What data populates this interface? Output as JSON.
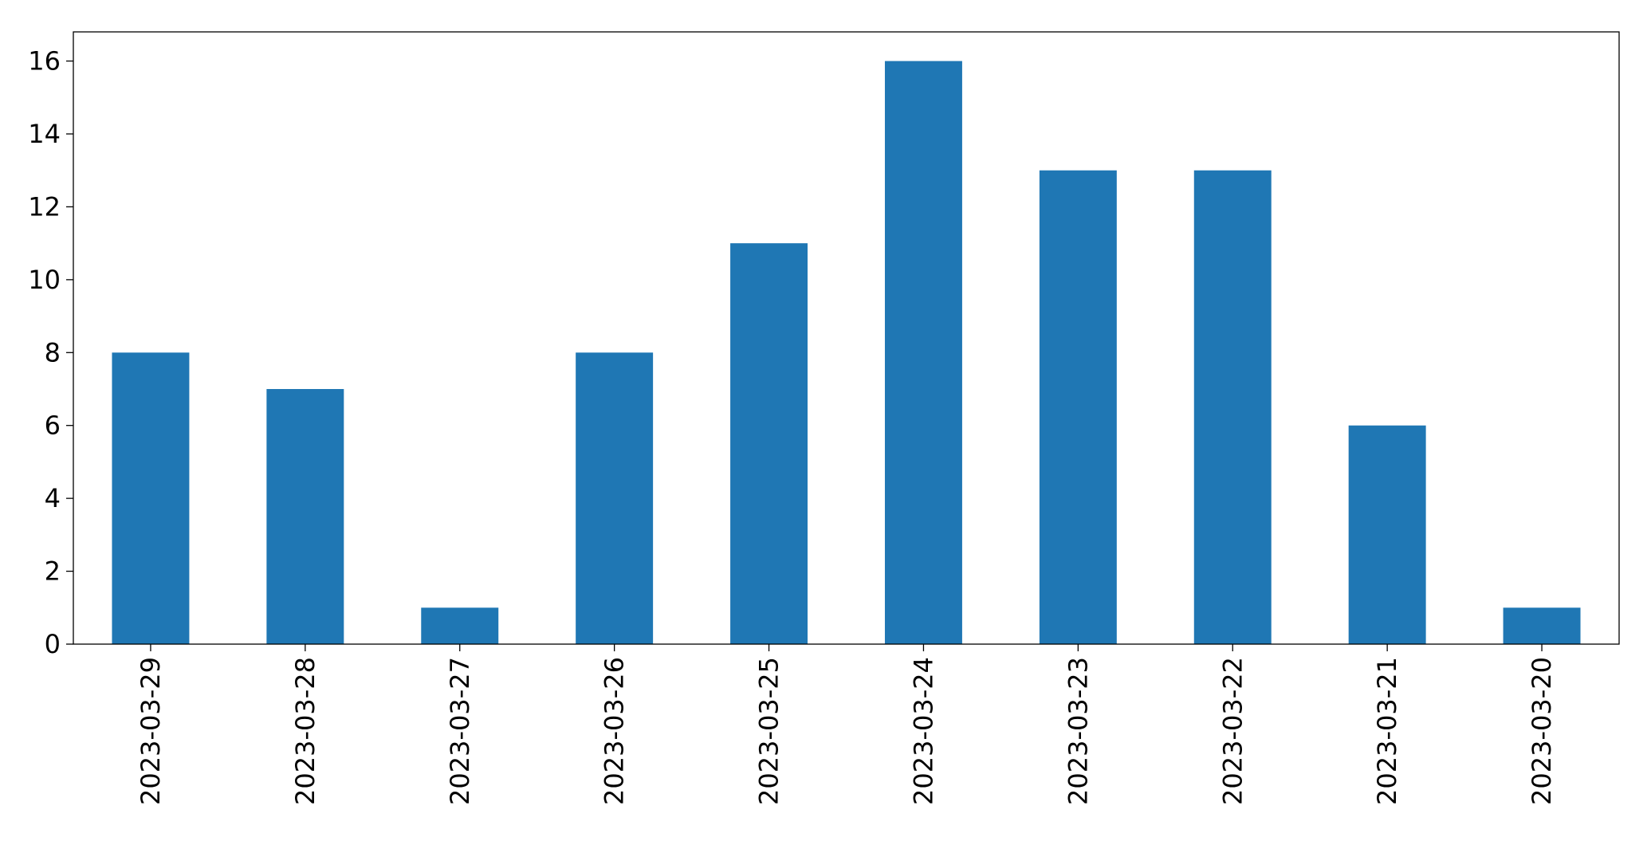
{
  "chart_data": {
    "type": "bar",
    "categories": [
      "2023-03-29",
      "2023-03-28",
      "2023-03-27",
      "2023-03-26",
      "2023-03-25",
      "2023-03-24",
      "2023-03-23",
      "2023-03-22",
      "2023-03-21",
      "2023-03-20"
    ],
    "values": [
      8,
      7,
      1,
      8,
      11,
      16,
      13,
      13,
      6,
      1
    ],
    "color": "#1f77b4",
    "ylim": [
      0,
      16.8
    ],
    "yticks": [
      0,
      2,
      4,
      6,
      8,
      10,
      12,
      14,
      16
    ],
    "grid": false
  }
}
